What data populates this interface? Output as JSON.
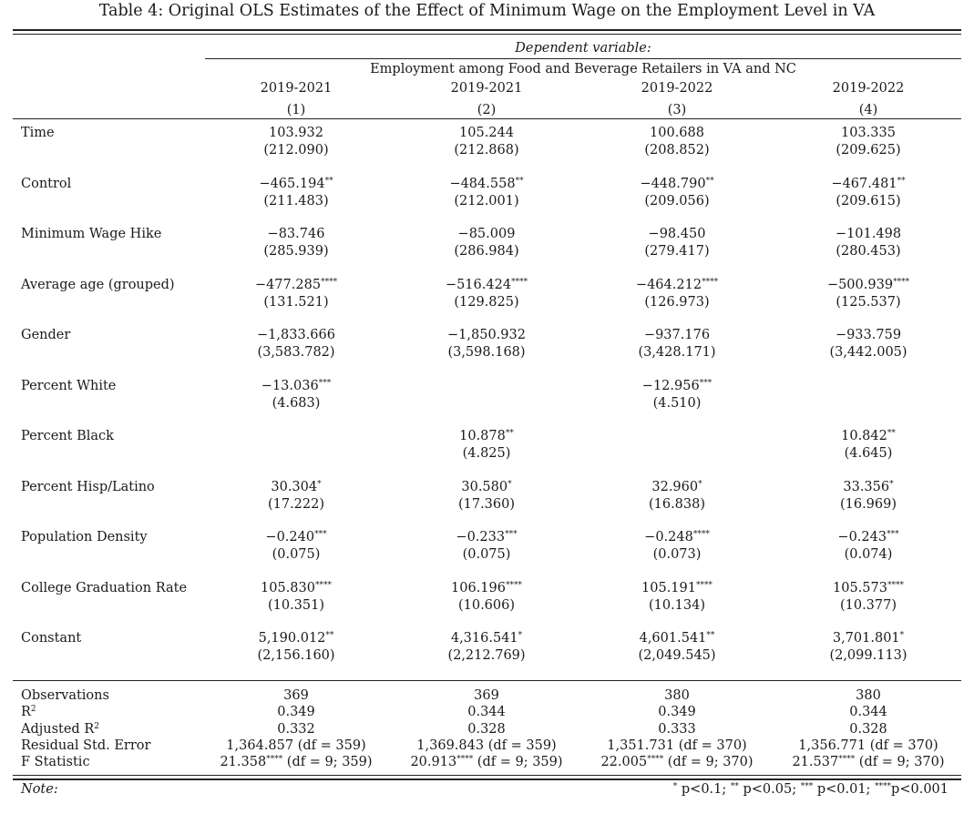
{
  "table": {
    "caption": "Table 4: Original OLS Estimates of the Effect of Minimum Wage on the Employment Level in VA",
    "dependent_label": "Dependent variable:",
    "dependent_var": "Employment among Food and Beverage Retailers in VA and NC",
    "years": [
      "2019-2021",
      "2019-2021",
      "2019-2022",
      "2019-2022"
    ],
    "model_numbers": [
      "(1)",
      "(2)",
      "(3)",
      "(4)"
    ],
    "rows": [
      {
        "label": "Time",
        "cells": [
          [
            "103.932",
            "",
            "(212.090)"
          ],
          [
            "105.244",
            "",
            "(212.868)"
          ],
          [
            "100.688",
            "",
            "(208.852)"
          ],
          [
            "103.335",
            "",
            "(209.625)"
          ]
        ]
      },
      {
        "label": "Control",
        "cells": [
          [
            "−465.194",
            "**",
            "(211.483)"
          ],
          [
            "−484.558",
            "**",
            "(212.001)"
          ],
          [
            "−448.790",
            "**",
            "(209.056)"
          ],
          [
            "−467.481",
            "**",
            "(209.615)"
          ]
        ]
      },
      {
        "label": "Minimum Wage Hike",
        "cells": [
          [
            "−83.746",
            "",
            "(285.939)"
          ],
          [
            "−85.009",
            "",
            "(286.984)"
          ],
          [
            "−98.450",
            "",
            "(279.417)"
          ],
          [
            "−101.498",
            "",
            "(280.453)"
          ]
        ]
      },
      {
        "label": "Average age (grouped)",
        "cells": [
          [
            "−477.285",
            "****",
            "(131.521)"
          ],
          [
            "−516.424",
            "****",
            "(129.825)"
          ],
          [
            "−464.212",
            "****",
            "(126.973)"
          ],
          [
            "−500.939",
            "****",
            "(125.537)"
          ]
        ]
      },
      {
        "label": "Gender",
        "cells": [
          [
            "−1,833.666",
            "",
            "(3,583.782)"
          ],
          [
            "−1,850.932",
            "",
            "(3,598.168)"
          ],
          [
            "−937.176",
            "",
            "(3,428.171)"
          ],
          [
            "−933.759",
            "",
            "(3,442.005)"
          ]
        ]
      },
      {
        "label": "Percent White",
        "cells": [
          [
            "−13.036",
            "***",
            "(4.683)"
          ],
          [
            "",
            "",
            ""
          ],
          [
            "−12.956",
            "***",
            "(4.510)"
          ],
          [
            "",
            "",
            ""
          ]
        ]
      },
      {
        "label": "Percent Black",
        "cells": [
          [
            "",
            "",
            ""
          ],
          [
            "10.878",
            "**",
            "(4.825)"
          ],
          [
            "",
            "",
            ""
          ],
          [
            "10.842",
            "**",
            "(4.645)"
          ]
        ]
      },
      {
        "label": "Percent Hisp/Latino",
        "cells": [
          [
            "30.304",
            "*",
            "(17.222)"
          ],
          [
            "30.580",
            "*",
            "(17.360)"
          ],
          [
            "32.960",
            "*",
            "(16.838)"
          ],
          [
            "33.356",
            "*",
            "(16.969)"
          ]
        ]
      },
      {
        "label": "Population Density",
        "cells": [
          [
            "−0.240",
            "***",
            "(0.075)"
          ],
          [
            "−0.233",
            "***",
            "(0.075)"
          ],
          [
            "−0.248",
            "****",
            "(0.073)"
          ],
          [
            "−0.243",
            "***",
            "(0.074)"
          ]
        ]
      },
      {
        "label": "College Graduation Rate",
        "cells": [
          [
            "105.830",
            "****",
            "(10.351)"
          ],
          [
            "106.196",
            "****",
            "(10.606)"
          ],
          [
            "105.191",
            "****",
            "(10.134)"
          ],
          [
            "105.573",
            "****",
            "(10.377)"
          ]
        ]
      },
      {
        "label": "Constant",
        "cells": [
          [
            "5,190.012",
            "**",
            "(2,156.160)"
          ],
          [
            "4,316.541",
            "*",
            "(2,212.769)"
          ],
          [
            "4,601.541",
            "**",
            "(2,049.545)"
          ],
          [
            "3,701.801",
            "*",
            "(2,099.113)"
          ]
        ]
      }
    ],
    "stats": [
      {
        "label": "Observations",
        "label_sup": "",
        "cells": [
          [
            "369",
            "",
            ""
          ],
          [
            "369",
            "",
            ""
          ],
          [
            "380",
            "",
            ""
          ],
          [
            "380",
            "",
            ""
          ]
        ]
      },
      {
        "label": "R",
        "label_sup": "2",
        "cells": [
          [
            "0.349",
            "",
            ""
          ],
          [
            "0.344",
            "",
            ""
          ],
          [
            "0.349",
            "",
            ""
          ],
          [
            "0.344",
            "",
            ""
          ]
        ]
      },
      {
        "label": "Adjusted R",
        "label_sup": "2",
        "cells": [
          [
            "0.332",
            "",
            ""
          ],
          [
            "0.328",
            "",
            ""
          ],
          [
            "0.333",
            "",
            ""
          ],
          [
            "0.328",
            "",
            ""
          ]
        ]
      },
      {
        "label": "Residual Std. Error",
        "label_sup": "",
        "cells": [
          [
            "1,364.857 (df = 359)",
            "",
            ""
          ],
          [
            "1,369.843 (df = 359)",
            "",
            ""
          ],
          [
            "1,351.731 (df = 370)",
            "",
            ""
          ],
          [
            "1,356.771 (df = 370)",
            "",
            ""
          ]
        ]
      },
      {
        "label": "F Statistic",
        "label_sup": "",
        "cells": [
          [
            "21.358",
            "****",
            " (df = 9; 359)"
          ],
          [
            "20.913",
            "****",
            " (df = 9; 359)"
          ],
          [
            "22.005",
            "****",
            " (df = 9; 370)"
          ],
          [
            "21.537",
            "****",
            " (df = 9; 370)"
          ]
        ]
      }
    ],
    "note_label": "Note:",
    "significance": [
      [
        "",
        "*",
        " p<0.1; "
      ],
      [
        "",
        "**",
        " p<0.05; "
      ],
      [
        "",
        "***",
        " p<0.01; "
      ],
      [
        "",
        "****",
        "p<0.001"
      ]
    ]
  }
}
